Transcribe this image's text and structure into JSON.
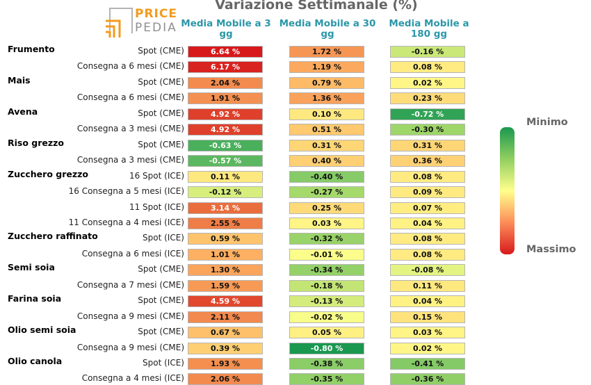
{
  "logo": {
    "word1": "PRICE",
    "word2": "PEDIA"
  },
  "colors": {
    "min": "#1a9850",
    "mid": "#ffff8c",
    "max": "#d7191c",
    "header": "#2b97a8"
  },
  "legend": {
    "min_label": "Minimo",
    "max_label": "Massimo"
  },
  "chart_data": {
    "type": "table",
    "title": "Variazione Settimanale (%)",
    "columns": [
      "Media Mobile a 3 gg",
      "Media Mobile a 30 gg",
      "Media Mobile a 180 gg"
    ],
    "groups": [
      {
        "name": "Frumento",
        "rows": [
          {
            "label": "Spot (CME)",
            "values": [
              "6.64 %",
              "1.72 %",
              "-0.16 %"
            ]
          },
          {
            "label": "Consegna a 6 mesi (CME)",
            "values": [
              "6.17 %",
              "1.19 %",
              "0.08 %"
            ]
          }
        ]
      },
      {
        "name": "Mais",
        "rows": [
          {
            "label": "Spot (CME)",
            "values": [
              "2.04 %",
              "0.79 %",
              "0.02 %"
            ]
          },
          {
            "label": "Consegna a 6 mesi (CME)",
            "values": [
              "1.91 %",
              "1.36 %",
              "0.23 %"
            ]
          }
        ]
      },
      {
        "name": "Avena",
        "rows": [
          {
            "label": "Spot (CME)",
            "values": [
              "4.92 %",
              "0.10 %",
              "-0.72 %"
            ]
          },
          {
            "label": "Consegna a 3 mesi (CME)",
            "values": [
              "4.92 %",
              "0.51 %",
              "-0.30 %"
            ]
          }
        ]
      },
      {
        "name": "Riso grezzo",
        "rows": [
          {
            "label": "Spot (CME)",
            "values": [
              "-0.63 %",
              "0.31 %",
              "0.31 %"
            ]
          },
          {
            "label": "Consegna a 3 mesi (CME)",
            "values": [
              "-0.57 %",
              "0.40 %",
              "0.36 %"
            ]
          }
        ]
      },
      {
        "name": "Zucchero grezzo",
        "rows": [
          {
            "label": "16 Spot (ICE)",
            "values": [
              "0.11 %",
              "-0.40 %",
              "0.08 %"
            ]
          },
          {
            "label": "16 Consegna a 5 mesi (ICE)",
            "values": [
              "-0.12 %",
              "-0.27 %",
              "0.09 %"
            ]
          },
          {
            "label": "11 Spot (ICE)",
            "values": [
              "3.14 %",
              "0.25 %",
              "0.07 %"
            ]
          },
          {
            "label": "11 Consegna a 4 mesi (ICE)",
            "values": [
              "2.55 %",
              "0.03 %",
              "0.04 %"
            ]
          }
        ]
      },
      {
        "name": "Zucchero raffinato",
        "rows": [
          {
            "label": "Spot (ICE)",
            "values": [
              "0.59 %",
              "-0.32 %",
              "0.08 %"
            ]
          },
          {
            "label": "Consegna a 6 mesi (ICE)",
            "values": [
              "1.01 %",
              "-0.01 %",
              "0.08 %"
            ]
          }
        ]
      },
      {
        "name": "Semi soia",
        "rows": [
          {
            "label": "Spot (CME)",
            "values": [
              "1.30 %",
              "-0.34 %",
              "-0.08 %"
            ]
          },
          {
            "label": "Consegna a 7 mesi (CME)",
            "values": [
              "1.59 %",
              "-0.18 %",
              "0.11 %"
            ]
          }
        ]
      },
      {
        "name": "Farina soia",
        "rows": [
          {
            "label": "Spot (CME)",
            "values": [
              "4.59 %",
              "-0.13 %",
              "0.04 %"
            ]
          },
          {
            "label": "Consegna a 9 mesi (CME)",
            "values": [
              "2.11 %",
              "-0.02 %",
              "0.15 %"
            ]
          }
        ]
      },
      {
        "name": "Olio semi soia",
        "rows": [
          {
            "label": "Spot (CME)",
            "values": [
              "0.67 %",
              "0.05 %",
              "0.03 %"
            ]
          },
          {
            "label": "Consegna a 9 mesi (CME)",
            "values": [
              "0.39 %",
              "-0.80 %",
              "0.02 %"
            ]
          }
        ]
      },
      {
        "name": "Olio canola",
        "rows": [
          {
            "label": "Spot (ICE)",
            "values": [
              "1.93 %",
              "-0.38 %",
              "-0.41 %"
            ]
          },
          {
            "label": "Consegna a 4 mesi (ICE)",
            "values": [
              "2.06 %",
              "-0.35 %",
              "-0.36 %"
            ]
          }
        ]
      }
    ]
  }
}
